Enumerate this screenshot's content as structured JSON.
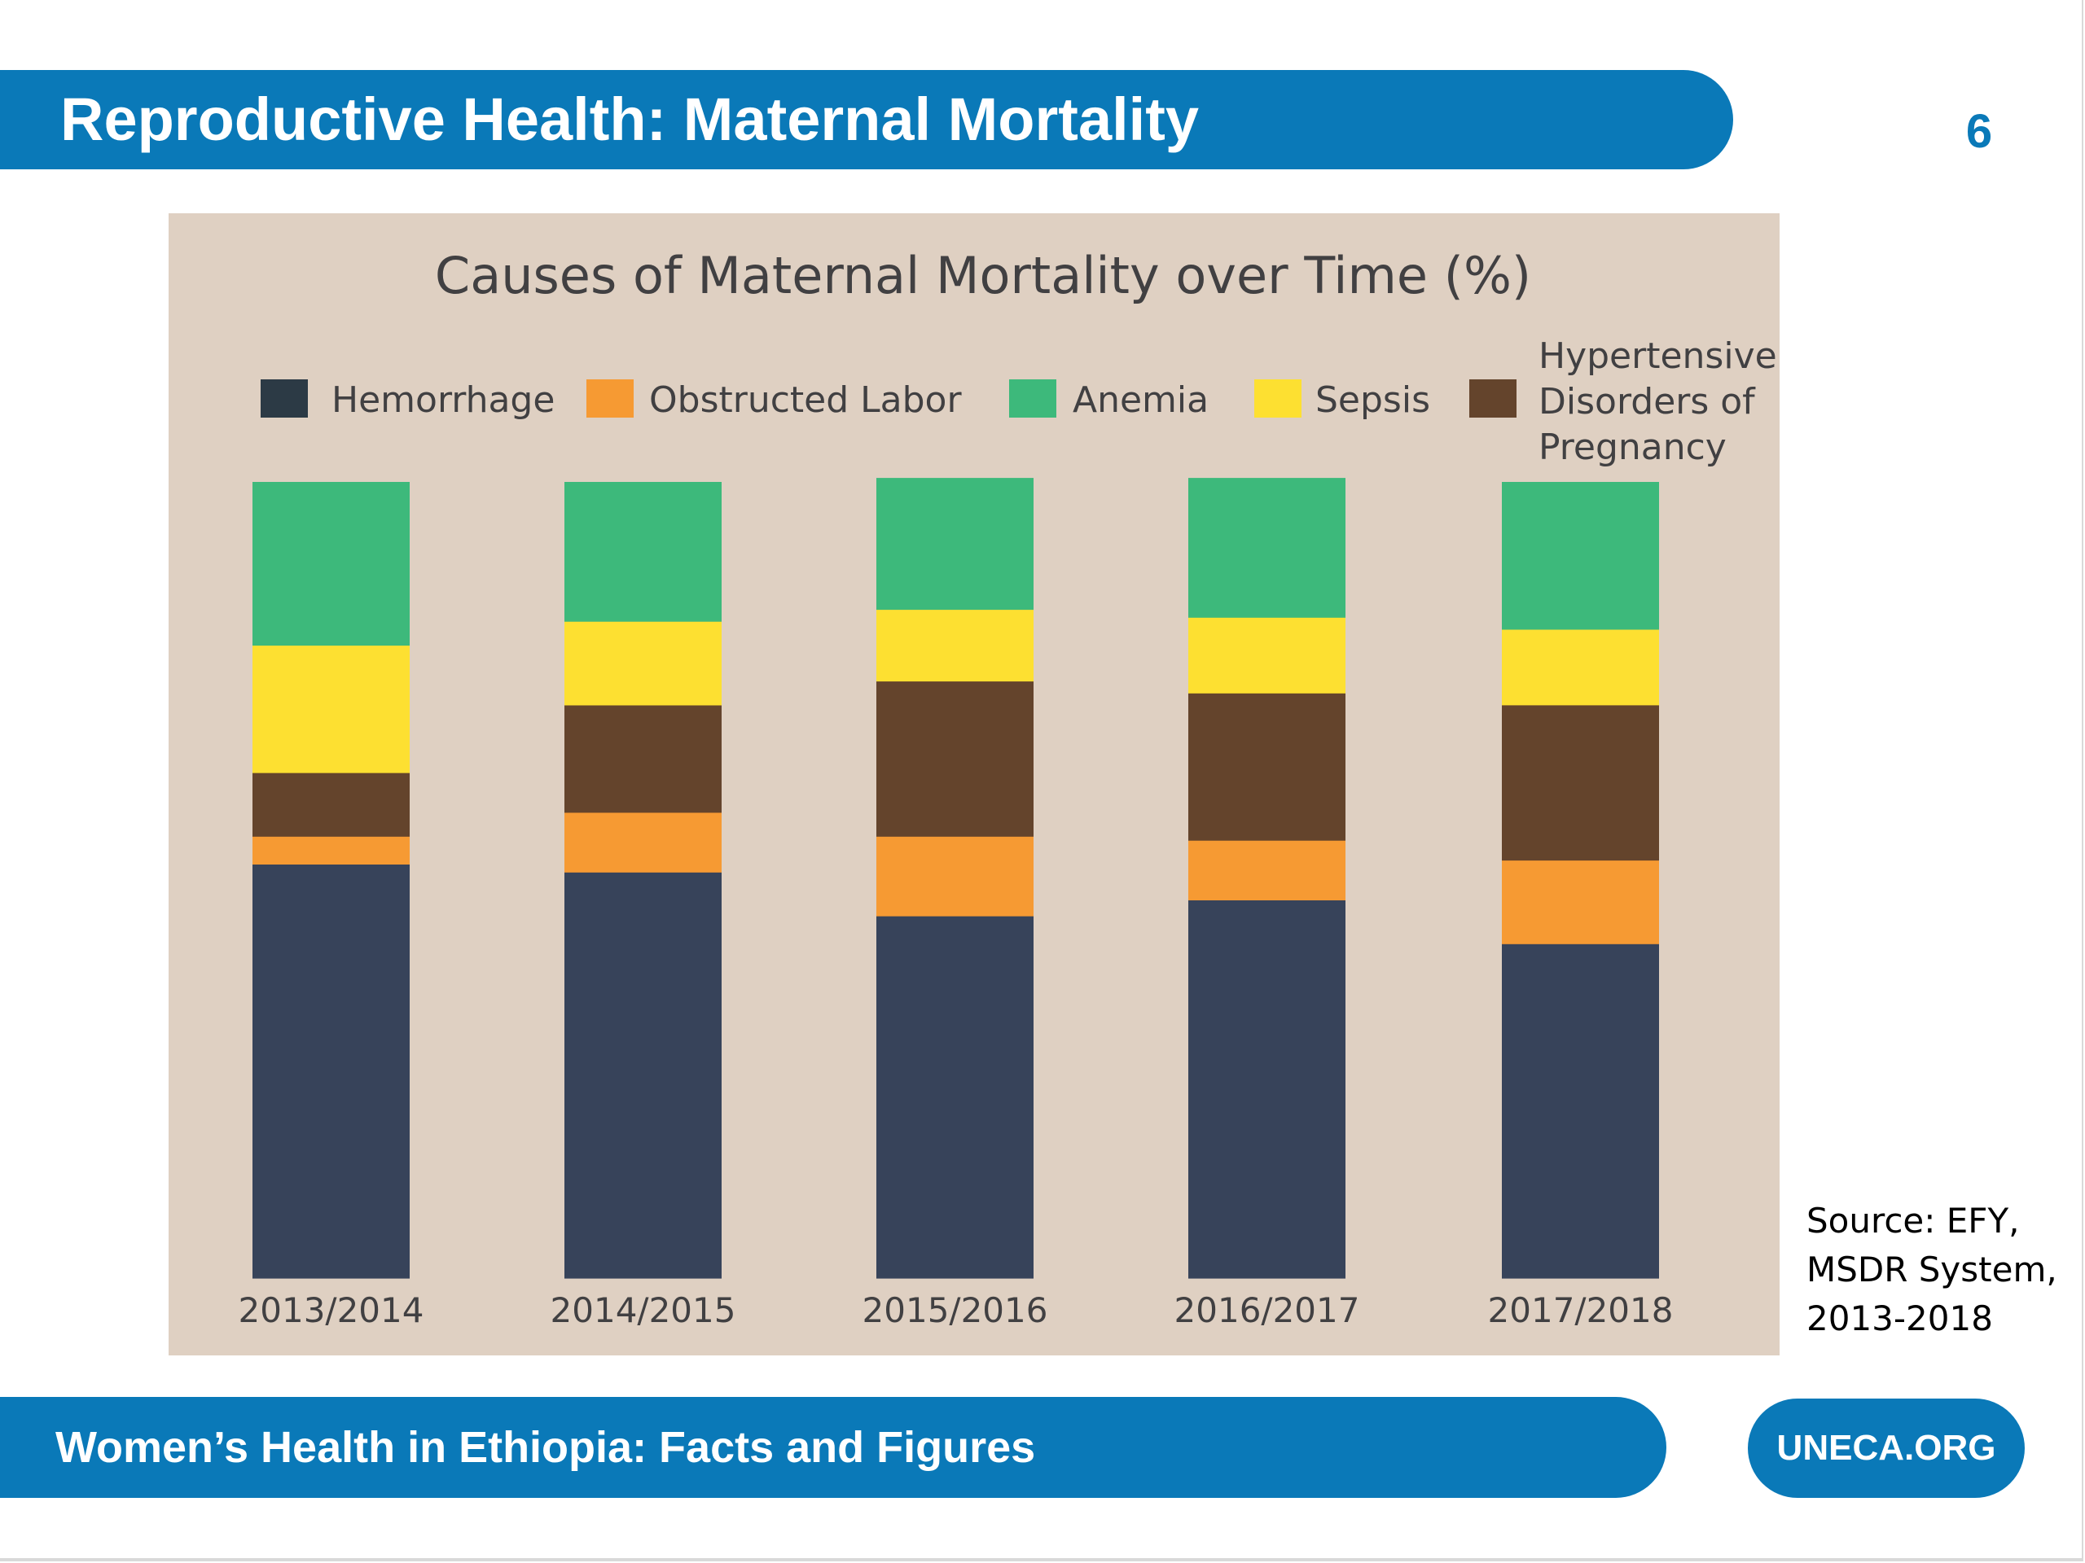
{
  "slide": {
    "title": "Reproductive Health: Maternal Mortality",
    "page_number": "6",
    "footer": "Women’s Health in Ethiopia: Facts and Figures",
    "site": "UNECA.ORG",
    "source_lines": [
      "Source: EFY,",
      "MSDR System,",
      "2013-2018"
    ]
  },
  "chart_data": {
    "type": "bar",
    "stacked": true,
    "title": "Causes of Maternal Mortality over Time (%)",
    "xlabel": "",
    "ylabel": "",
    "ylim": [
      0,
      100
    ],
    "grid": false,
    "legend_position": "top",
    "categories": [
      "2013/2014",
      "2014/2015",
      "2015/2016",
      "2016/2017",
      "2017/2018"
    ],
    "series": [
      {
        "name": "Hemorrhage",
        "color": "#37435a",
        "values": [
          52,
          51,
          45.5,
          47.5,
          42
        ]
      },
      {
        "name": "Obstructed Labor",
        "color": "#f69a33",
        "values": [
          3.5,
          7.5,
          10,
          7.5,
          10.5
        ]
      },
      {
        "name": "Hypertensive Disorders of Pregnancy",
        "color": "#64442c",
        "values": [
          8,
          13.5,
          19.5,
          18.5,
          19.5
        ]
      },
      {
        "name": "Sepsis",
        "color": "#fde031",
        "values": [
          16,
          10.5,
          9,
          9.5,
          9.5
        ]
      },
      {
        "name": "Anemia",
        "color": "#3db97b",
        "values": [
          20.5,
          17.5,
          16.5,
          17.5,
          18.5
        ]
      }
    ],
    "legend": [
      {
        "label_lines": [
          "Hemorrhage"
        ],
        "color": "#2c3a45"
      },
      {
        "label_lines": [
          "Obstructed Labor"
        ],
        "color": "#f69a33"
      },
      {
        "label_lines": [
          "Anemia"
        ],
        "color": "#3db97b"
      },
      {
        "label_lines": [
          "Sepsis"
        ],
        "color": "#fde031"
      },
      {
        "label_lines": [
          "Hypertensive",
          "Disorders of",
          "Pregnancy"
        ],
        "color": "#64442c"
      }
    ]
  }
}
